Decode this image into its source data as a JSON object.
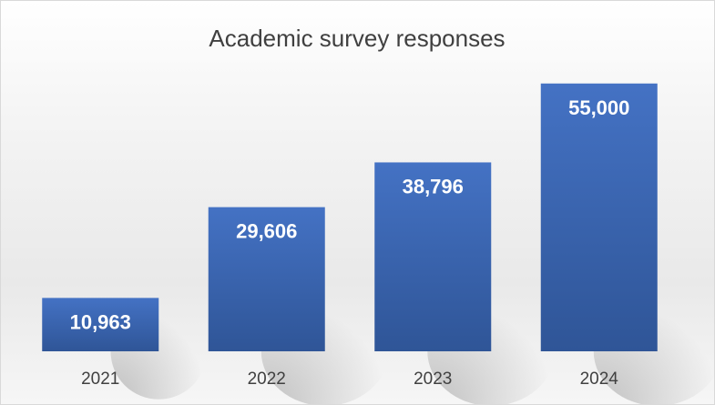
{
  "chart_data": {
    "type": "bar",
    "title": "Academic survey responses",
    "categories": [
      "2021",
      "2022",
      "2023",
      "2024"
    ],
    "values": [
      10963,
      29606,
      38796,
      55000
    ],
    "value_labels": [
      "10,963",
      "29,606",
      "38,796",
      "55,000"
    ],
    "xlabel": "",
    "ylabel": "",
    "ylim": [
      0,
      60000
    ],
    "grid": false,
    "legend": "none",
    "bar_color_top": "#4472c4",
    "bar_color_bottom": "#2f5597"
  }
}
